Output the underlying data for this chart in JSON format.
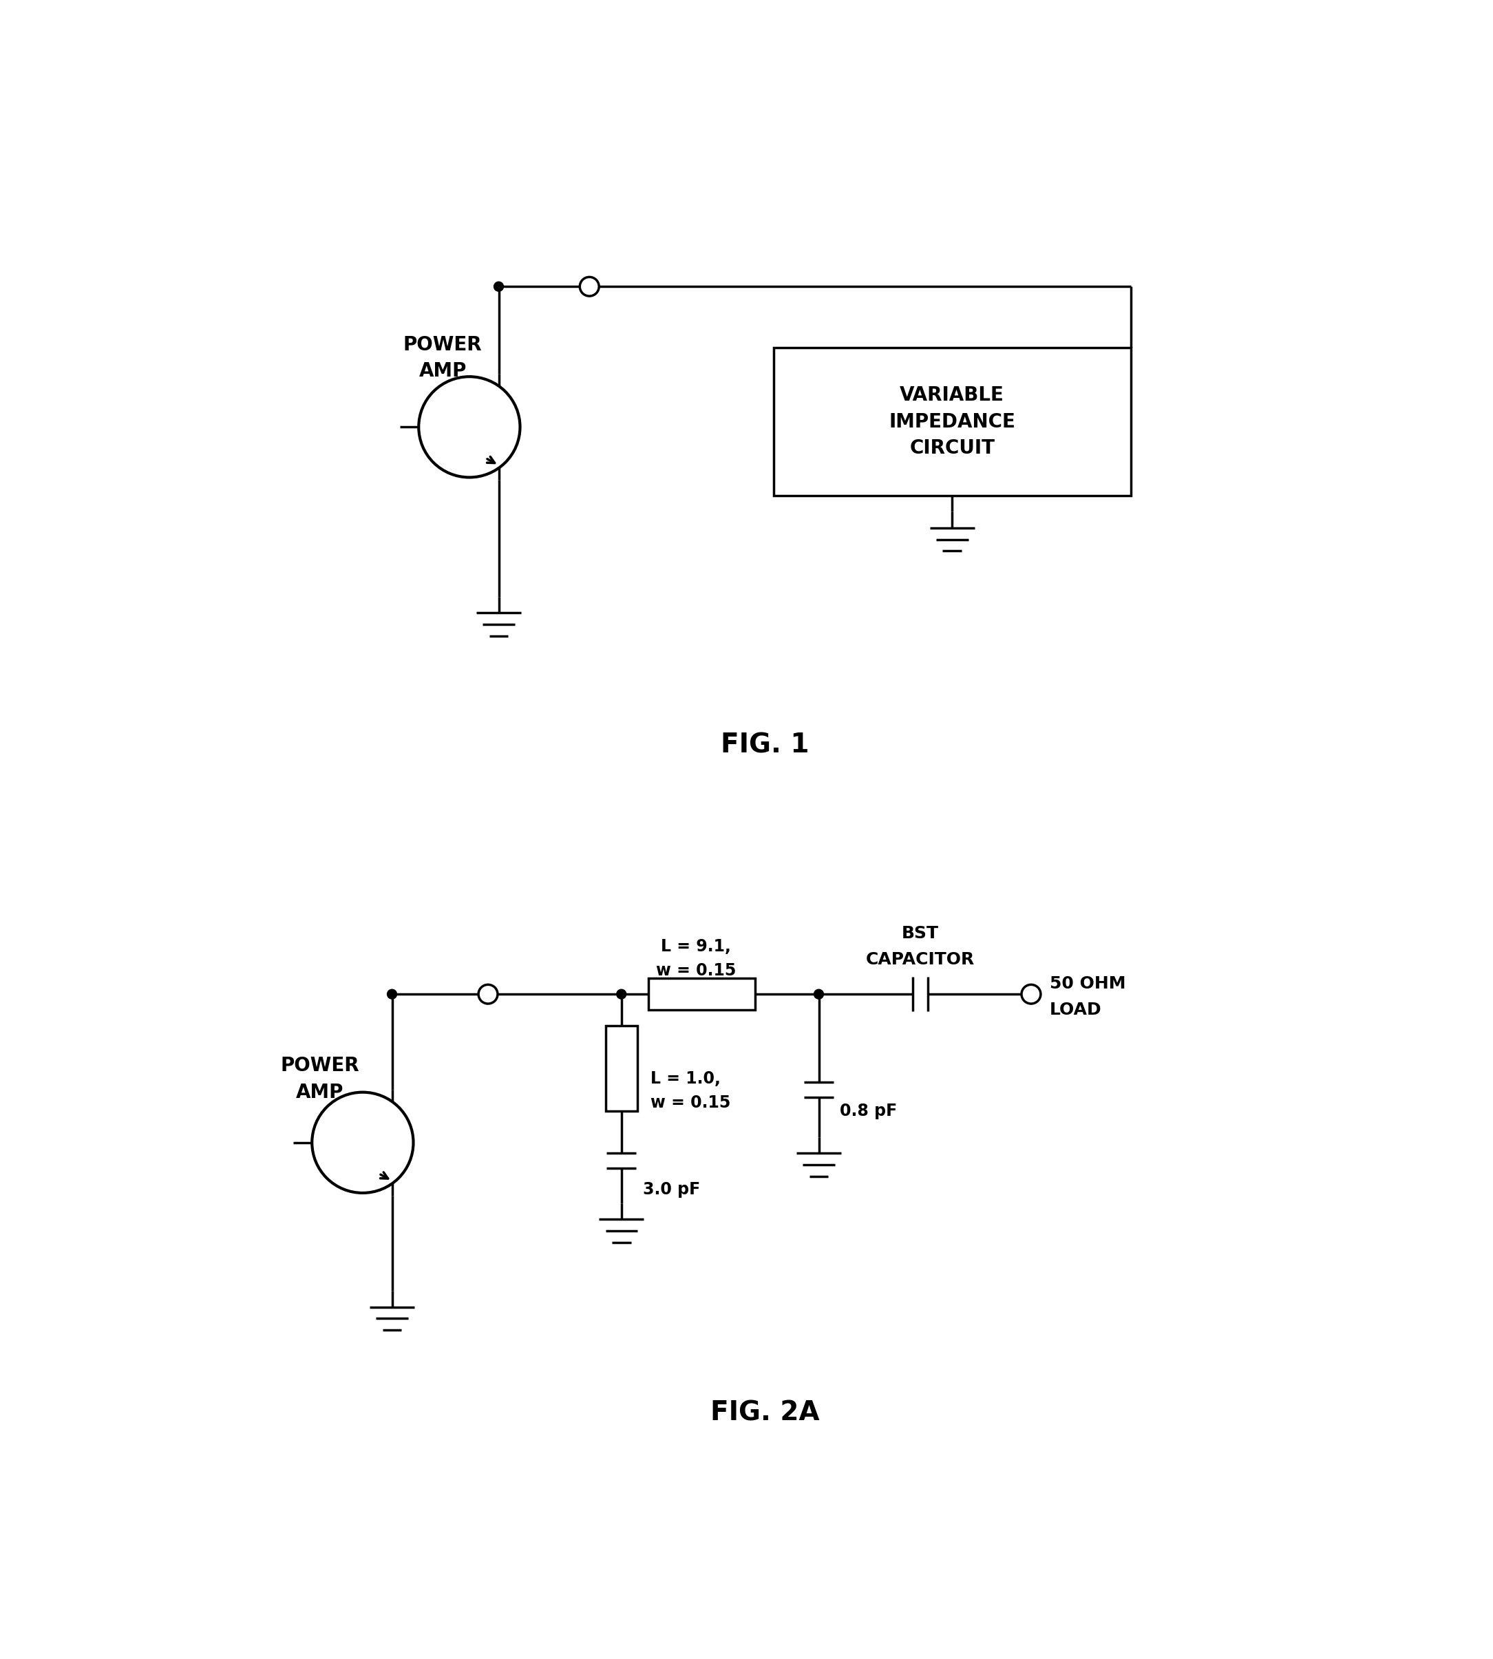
{
  "fig_width": 21.69,
  "fig_height": 24.1,
  "bg_color": "#ffffff",
  "line_color": "#000000",
  "line_width": 2.5,
  "fig1_label": "FIG. 1",
  "fig2_label": "FIG. 2A",
  "variable_impedance_lines": [
    "VARIABLE",
    "IMPEDANCE",
    "CIRCUIT"
  ],
  "bst_cap_lines": [
    "BST",
    "CAPACITOR"
  ],
  "load_lines": [
    "50 OHM",
    "LOAD"
  ],
  "ind1_lines": [
    "L = 9.1,",
    "w = 0.15"
  ],
  "ind2_lines": [
    "L = 1.0,",
    "w = 0.15"
  ],
  "cap1_label": "3.0 pF",
  "cap2_label": "0.8 pF",
  "power_amp_lines": [
    "POWER",
    "AMP"
  ]
}
